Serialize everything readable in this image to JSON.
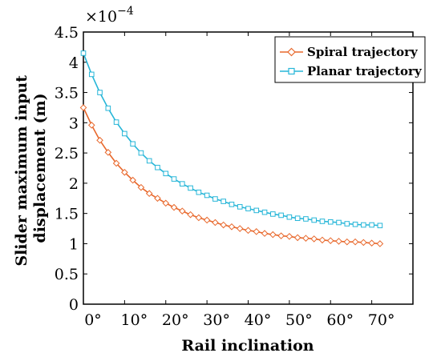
{
  "chart_data": {
    "type": "line",
    "xlabel": "Rail inclination",
    "ylabel": "Slider maximum input displacement (m)",
    "y_multiplier": "×10",
    "y_exponent": "−4",
    "xlim": [
      0,
      80
    ],
    "ylim": [
      0,
      4.5
    ],
    "x_ticks": [
      0,
      10,
      20,
      30,
      40,
      50,
      60,
      70
    ],
    "x_tick_labels": [
      "0°",
      "10°",
      "20°",
      "30°",
      "40°",
      "50°",
      "60°",
      "70°"
    ],
    "y_ticks": [
      0,
      0.5,
      1,
      1.5,
      2,
      2.5,
      3,
      3.5,
      4,
      4.5
    ],
    "y_tick_labels": [
      "0",
      "0.5",
      "1",
      "1.5",
      "2",
      "2.5",
      "3",
      "3.5",
      "4",
      "4.5"
    ],
    "grid": false,
    "legend_position": "top-right",
    "series": [
      {
        "name": "Spiral trajectory",
        "color": "#E8682C",
        "marker": "diamond",
        "x": [
          0,
          2,
          4,
          6,
          8,
          10,
          12,
          14,
          16,
          18,
          20,
          22,
          24,
          26,
          28,
          30,
          32,
          34,
          36,
          38,
          40,
          42,
          44,
          46,
          48,
          50,
          52,
          54,
          56,
          58,
          60,
          62,
          64,
          66,
          68,
          70,
          72
        ],
        "y": [
          3.25,
          2.96,
          2.71,
          2.51,
          2.33,
          2.18,
          2.05,
          1.93,
          1.83,
          1.75,
          1.67,
          1.6,
          1.54,
          1.48,
          1.43,
          1.39,
          1.35,
          1.31,
          1.28,
          1.25,
          1.22,
          1.2,
          1.17,
          1.15,
          1.13,
          1.12,
          1.1,
          1.09,
          1.08,
          1.06,
          1.05,
          1.04,
          1.03,
          1.03,
          1.02,
          1.01,
          1.0
        ]
      },
      {
        "name": "Planar trajectory",
        "color": "#27B6D8",
        "marker": "square",
        "x": [
          0,
          2,
          4,
          6,
          8,
          10,
          12,
          14,
          16,
          18,
          20,
          22,
          24,
          26,
          28,
          30,
          32,
          34,
          36,
          38,
          40,
          42,
          44,
          46,
          48,
          50,
          52,
          54,
          56,
          58,
          60,
          62,
          64,
          66,
          68,
          70,
          72
        ],
        "y": [
          4.15,
          3.8,
          3.5,
          3.24,
          3.01,
          2.82,
          2.65,
          2.5,
          2.37,
          2.26,
          2.16,
          2.07,
          1.99,
          1.92,
          1.85,
          1.8,
          1.74,
          1.7,
          1.65,
          1.61,
          1.58,
          1.55,
          1.52,
          1.49,
          1.47,
          1.44,
          1.42,
          1.41,
          1.39,
          1.37,
          1.36,
          1.35,
          1.33,
          1.32,
          1.31,
          1.31,
          1.3
        ]
      }
    ]
  }
}
